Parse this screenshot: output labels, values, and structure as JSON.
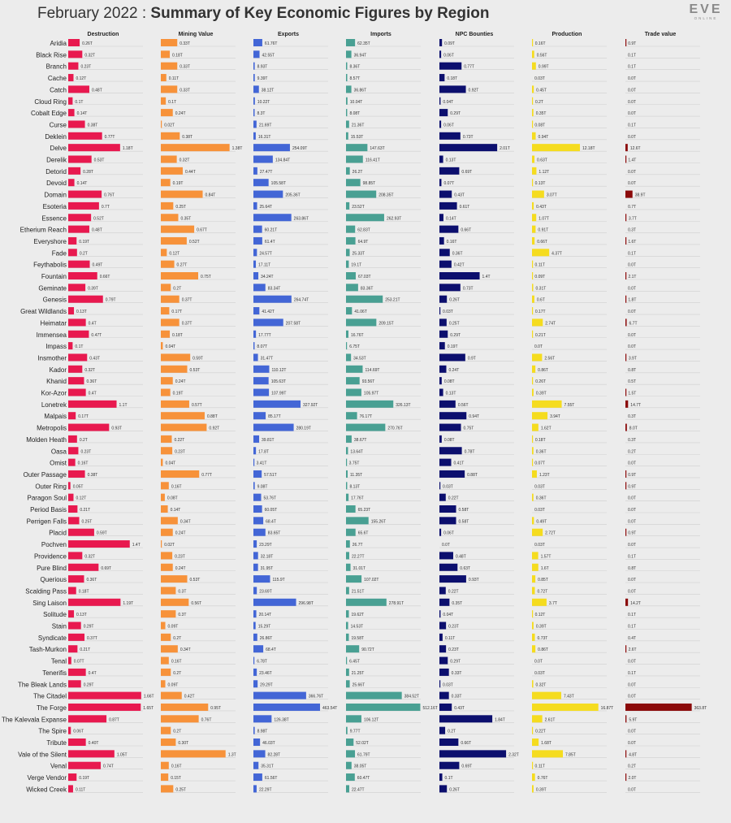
{
  "header": {
    "title_prefix": "February 2022 : ",
    "title_main": "Summary of Key Economic Figures by Region",
    "logo_text": "EVE",
    "logo_sub": "ONLINE"
  },
  "chart_data": {
    "type": "bar",
    "orientation": "horizontal",
    "categories": [
      "Aridia",
      "Black Rise",
      "Branch",
      "Cache",
      "Catch",
      "Cloud Ring",
      "Cobalt Edge",
      "Curse",
      "Deklein",
      "Delve",
      "Derelik",
      "Detorid",
      "Devoid",
      "Domain",
      "Esoteria",
      "Essence",
      "Etherium Reach",
      "Everyshore",
      "Fade",
      "Feythabolis",
      "Fountain",
      "Geminate",
      "Genesis",
      "Great Wildlands",
      "Heimatar",
      "Immensea",
      "Impass",
      "Insmother",
      "Kador",
      "Khanid",
      "Kor-Azor",
      "Lonetrek",
      "Malpais",
      "Metropolis",
      "Molden Heath",
      "Oasa",
      "Omist",
      "Outer Passage",
      "Outer Ring",
      "Paragon Soul",
      "Period Basis",
      "Perrigen Falls",
      "Placid",
      "Pochven",
      "Providence",
      "Pure Blind",
      "Querious",
      "Scalding Pass",
      "Sing Laison",
      "Solitude",
      "Stain",
      "Syndicate",
      "Tash-Murkon",
      "Tenal",
      "Tenerifis",
      "The Bleak Lands",
      "The Citadel",
      "The Forge",
      "The Kalevala Expanse",
      "The Spire",
      "Tribute",
      "Vale of the Silent",
      "Venal",
      "Verge Vendor",
      "Wicked Creek"
    ],
    "series": [
      {
        "name": "Destruction",
        "color": "#e8194f",
        "scale_max": 1.7,
        "values": [
          0.26,
          0.32,
          0.23,
          0.12,
          0.48,
          0.1,
          0.14,
          0.38,
          0.77,
          1.18,
          0.53,
          0.28,
          0.14,
          0.76,
          0.7,
          0.52,
          0.48,
          0.19,
          0.2,
          0.49,
          0.66,
          0.39,
          0.79,
          0.13,
          0.4,
          0.47,
          0.1,
          0.43,
          0.32,
          0.36,
          0.4,
          1.1,
          0.17,
          0.93,
          0.2,
          0.23,
          0.16,
          0.38,
          0.05,
          0.12,
          0.21,
          0.25,
          0.59,
          1.4,
          0.32,
          0.69,
          0.36,
          0.18,
          1.19,
          0.13,
          0.29,
          0.37,
          0.21,
          0.07,
          0.4,
          0.29,
          1.66,
          1.65,
          0.87,
          0.06,
          0.4,
          1.05,
          0.74,
          0.19,
          0.11
        ],
        "labels": [
          "0.26T",
          "0.32T",
          "0.23T",
          "0.12T",
          "0.48T",
          "0.1T",
          "0.14T",
          "0.38T",
          "0.77T",
          "1.18T",
          "0.53T",
          "0.28T",
          "0.14T",
          "0.76T",
          "0.7T",
          "0.52T",
          "0.48T",
          "0.19T",
          "0.2T",
          "0.49T",
          "0.66T",
          "0.39T",
          "0.79T",
          "0.13T",
          "0.4T",
          "0.47T",
          "0.1T",
          "0.43T",
          "0.32T",
          "0.36T",
          "0.4T",
          "1.1T",
          "0.17T",
          "0.93T",
          "0.2T",
          "0.23T",
          "0.16T",
          "0.38T",
          "0.05T",
          "0.12T",
          "0.21T",
          "0.25T",
          "0.59T",
          "1.4T",
          "0.32T",
          "0.69T",
          "0.36T",
          "0.18T",
          "1.19T",
          "0.13T",
          "0.29T",
          "0.37T",
          "0.21T",
          "0.07T",
          "0.4T",
          "0.29T",
          "1.66T",
          "1.65T",
          "0.87T",
          "0.06T",
          "0.40T",
          "1.05T",
          "0.74T",
          "0.19T",
          "0.11T"
        ]
      },
      {
        "name": "Mining Value",
        "color": "#f7923a",
        "scale_max": 1.5,
        "values": [
          0.33,
          0.18,
          0.33,
          0.11,
          0.33,
          0.1,
          0.24,
          0.02,
          0.38,
          1.38,
          0.32,
          0.44,
          0.19,
          0.84,
          0.25,
          0.35,
          0.67,
          0.52,
          0.12,
          0.27,
          0.75,
          0.2,
          0.37,
          0.17,
          0.37,
          0.18,
          0.04,
          0.59,
          0.53,
          0.24,
          0.19,
          0.57,
          0.88,
          0.92,
          0.22,
          0.23,
          0.04,
          0.77,
          0.16,
          0.08,
          0.14,
          0.34,
          0.24,
          0.02,
          0.23,
          0.24,
          0.53,
          0.3,
          0.56,
          0.3,
          0.09,
          0.2,
          0.34,
          0.16,
          0.2,
          0.09,
          0.42,
          0.95,
          0.76,
          0.2,
          0.3,
          1.3,
          0.16,
          0.15,
          0.25
        ],
        "labels": [
          "0.33T",
          "0.18T",
          "0.33T",
          "0.11T",
          "0.33T",
          "0.1T",
          "0.24T",
          "0.02T",
          "0.38T",
          "1.38T",
          "0.32T",
          "0.44T",
          "0.19T",
          "0.84T",
          "0.25T",
          "0.35T",
          "0.67T",
          "0.52T",
          "0.12T",
          "0.27T",
          "0.75T",
          "0.2T",
          "0.37T",
          "0.17T",
          "0.37T",
          "0.18T",
          "0.04T",
          "0.59T",
          "0.53T",
          "0.24T",
          "0.19T",
          "0.57T",
          "0.88T",
          "0.92T",
          "0.22T",
          "0.23T",
          "0.04T",
          "0.77T",
          "0.16T",
          "0.08T",
          "0.14T",
          "0.34T",
          "0.24T",
          "0.02T",
          "0.23T",
          "0.24T",
          "0.53T",
          "0.3T",
          "0.56T",
          "0.3T",
          "0.09T",
          "0.2T",
          "0.34T",
          "0.16T",
          "0.2T",
          "0.09T",
          "0.42T",
          "0.95T",
          "0.76T",
          "0.2T",
          "0.30T",
          "1.3T",
          "0.16T",
          "0.15T",
          "0.25T"
        ]
      },
      {
        "name": "Exports",
        "color": "#4366d6",
        "scale_max": 520,
        "values": [
          61.76,
          42.55,
          8.93,
          9.39,
          38.12,
          10.22,
          8.3,
          21.69,
          16.31,
          254.09,
          134.84,
          27.47,
          105.58,
          205.36,
          25.64,
          263.86,
          60.21,
          61.4,
          24.57,
          17.11,
          34.24,
          83.34,
          264.74,
          41.42,
          207.58,
          17.77,
          8.07,
          31.47,
          110.12,
          105.63,
          107.99,
          327.92,
          85.17,
          280.19,
          39.81,
          17.8,
          3.41,
          57.51,
          9.08,
          53.76,
          60.05,
          68.4,
          83.65,
          23.29,
          32.18,
          31.95,
          115.9,
          23.69,
          296.98,
          20.14,
          15.29,
          26.86,
          68.4,
          6.78,
          23.46,
          29.29,
          366.76,
          463.54,
          126.38,
          8.98,
          46.03,
          82.28,
          35.31,
          61.56,
          22.29
        ],
        "labels": [
          "61.76T",
          "42.55T",
          "8.93T",
          "9.39T",
          "38.12T",
          "10.22T",
          "8.3T",
          "21.69T",
          "16.31T",
          "254.09T",
          "134.84T",
          "27.47T",
          "105.58T",
          "205.36T",
          "25.64T",
          "263.86T",
          "60.21T",
          "61.4T",
          "24.57T",
          "17.11T",
          "34.24T",
          "83.34T",
          "264.74T",
          "41.42T",
          "207.58T",
          "17.77T",
          "8.07T",
          "31.47T",
          "110.12T",
          "105.63T",
          "107.99T",
          "327.92T",
          "85.17T",
          "280.19T",
          "39.81T",
          "17.8T",
          "3.41T",
          "57.51T",
          "9.08T",
          "53.76T",
          "60.05T",
          "68.4T",
          "83.65T",
          "23.29T",
          "32.18T",
          "31.95T",
          "115.9T",
          "23.69T",
          "296.98T",
          "20.14T",
          "15.29T",
          "26.86T",
          "68.4T",
          "6.78T",
          "23.46T",
          "29.29T",
          "366.76T",
          "463.54T",
          "126.38T",
          "8.98T",
          "46.03T",
          "82.28T",
          "35.31T",
          "61.56T",
          "22.29T"
        ]
      },
      {
        "name": "Imports",
        "color": "#49a093",
        "scale_max": 560,
        "values": [
          62.35,
          36.94,
          8.36,
          8.57,
          36.86,
          10.04,
          8.08,
          21.36,
          15.53,
          147.63,
          116.41,
          26.2,
          98.85,
          208.35,
          23.52,
          262.93,
          62.83,
          64.9,
          25.33,
          19.1,
          67.03,
          83.36,
          253.21,
          41.06,
          209.15,
          16.76,
          6.75,
          34.53,
          114.69,
          93.56,
          105.97,
          326.13,
          76.17,
          270.76,
          38.67,
          13.64,
          3.75,
          11.35,
          8.13,
          17.76,
          65.23,
          155.26,
          65.6,
          26.7,
          22.27,
          31.01,
          107.02,
          21.51,
          278.91,
          19.62,
          14.53,
          19.58,
          90.72,
          6.45,
          21.25,
          25.66,
          384.52,
          512.16,
          106.12,
          9.77,
          52.02,
          61.79,
          38.05,
          60.47,
          22.47
        ],
        "labels": [
          "62.35T",
          "36.94T",
          "8.36T",
          "8.57T",
          "36.86T",
          "10.04T",
          "8.08T",
          "21.36T",
          "15.53T",
          "147.63T",
          "116.41T",
          "26.2T",
          "98.85T",
          "208.35T",
          "23.52T",
          "262.93T",
          "62.83T",
          "64.9T",
          "25.33T",
          "19.1T",
          "67.03T",
          "83.36T",
          "253.21T",
          "41.06T",
          "209.15T",
          "16.76T",
          "6.75T",
          "34.53T",
          "114.69T",
          "93.56T",
          "105.97T",
          "326.13T",
          "76.17T",
          "270.76T",
          "38.67T",
          "13.64T",
          "3.75T",
          "11.35T",
          "8.13T",
          "17.76T",
          "65.23T",
          "155.26T",
          "65.6T",
          "26.7T",
          "22.27T",
          "31.01T",
          "107.02T",
          "21.51T",
          "278.91T",
          "19.62T",
          "14.53T",
          "19.58T",
          "90.72T",
          "6.45T",
          "21.25T",
          "25.66T",
          "384.52T",
          "512.16T",
          "106.12T",
          "9.77T",
          "52.02T",
          "61.79T",
          "38.05T",
          "60.47T",
          "22.47T"
        ]
      },
      {
        "name": "NPC Bounties",
        "color": "#0c0f6e",
        "scale_max": 2.6,
        "values": [
          0.09,
          0.06,
          0.77,
          0.18,
          0.92,
          0.04,
          0.29,
          0.06,
          0.73,
          2.01,
          0.13,
          0.69,
          0.07,
          0.43,
          0.61,
          0.14,
          0.66,
          0.16,
          0.36,
          0.42,
          1.4,
          0.73,
          0.26,
          0.03,
          0.25,
          0.29,
          0.19,
          0.9,
          0.24,
          0.08,
          0.13,
          0.56,
          0.94,
          0.75,
          0.08,
          0.78,
          0.41,
          0.88,
          0.03,
          0.22,
          0.58,
          0.58,
          0.06,
          0,
          0.48,
          0.63,
          0.93,
          0.22,
          0.35,
          0.04,
          0.23,
          0.11,
          0.23,
          0.29,
          0.33,
          0.03,
          0.33,
          0.43,
          1.84,
          0.2,
          0.66,
          2.32,
          0.69,
          0.1,
          0.26
        ],
        "labels": [
          "0.09T",
          "0.06T",
          "0.77T",
          "0.18T",
          "0.92T",
          "0.04T",
          "0.29T",
          "0.06T",
          "0.73T",
          "2.01T",
          "0.13T",
          "0.69T",
          "0.07T",
          "0.43T",
          "0.61T",
          "0.14T",
          "0.66T",
          "0.16T",
          "0.36T",
          "0.42T",
          "1.4T",
          "0.73T",
          "0.26T",
          "0.03T",
          "0.25T",
          "0.29T",
          "0.19T",
          "0.9T",
          "0.24T",
          "0.08T",
          "0.13T",
          "0.56T",
          "0.94T",
          "0.75T",
          "0.08T",
          "0.78T",
          "0.41T",
          "0.88T",
          "0.03T",
          "0.22T",
          "0.58T",
          "0.58T",
          "0.06T",
          "0.0T",
          "0.48T",
          "0.63T",
          "0.93T",
          "0.22T",
          "0.35T",
          "0.04T",
          "0.23T",
          "0.11T",
          "0.23T",
          "0.29T",
          "0.33T",
          "0.03T",
          "0.33T",
          "0.43T",
          "1.84T",
          "0.2T",
          "0.66T",
          "2.32T",
          "0.69T",
          "0.1T",
          "0.26T"
        ]
      },
      {
        "name": "Production",
        "color": "#f5dc1f",
        "scale_max": 19,
        "values": [
          0.16,
          0.56,
          0.99,
          0.03,
          0.45,
          0.2,
          0.35,
          0.08,
          0.94,
          12.18,
          0.63,
          1.12,
          0.13,
          3.07,
          0.43,
          1.07,
          0.91,
          0.66,
          4.37,
          0.11,
          0.09,
          0.31,
          0.6,
          0.17,
          2.74,
          0.21,
          0,
          2.56,
          0.86,
          0.26,
          0.39,
          7.55,
          3.94,
          1.62,
          0.18,
          0.36,
          0.07,
          1.23,
          0.03,
          0.36,
          0.03,
          0.49,
          2.72,
          0.03,
          1.57,
          1.6,
          0.85,
          0.72,
          3.7,
          0.12,
          0.39,
          0.73,
          0.86,
          0,
          0.03,
          0.32,
          7.43,
          16.87,
          2.61,
          0.22,
          1.68,
          7.85,
          0.11,
          0.76,
          0.39
        ],
        "labels": [
          "0.16T",
          "0.56T",
          "0.99T",
          "0.03T",
          "0.45T",
          "0.2T",
          "0.35T",
          "0.08T",
          "0.94T",
          "12.18T",
          "0.63T",
          "1.12T",
          "0.13T",
          "3.07T",
          "0.43T",
          "1.07T",
          "0.91T",
          "0.66T",
          "4.37T",
          "0.11T",
          "0.09T",
          "0.31T",
          "0.6T",
          "0.17T",
          "2.74T",
          "0.21T",
          "0.0T",
          "2.56T",
          "0.86T",
          "0.26T",
          "0.39T",
          "7.55T",
          "3.94T",
          "1.62T",
          "0.18T",
          "0.36T",
          "0.07T",
          "1.23T",
          "0.03T",
          "0.36T",
          "0.03T",
          "0.49T",
          "2.72T",
          "0.03T",
          "1.57T",
          "1.6T",
          "0.85T",
          "0.72T",
          "3.7T",
          "0.12T",
          "0.39T",
          "0.73T",
          "0.86T",
          "0.0T",
          "0.03T",
          "0.32T",
          "7.43T",
          "16.87T",
          "2.61T",
          "0.22T",
          "1.68T",
          "7.85T",
          "0.11T",
          "0.76T",
          "0.39T"
        ]
      },
      {
        "name": "Trade value",
        "color": "#8b0a0a",
        "scale_max": 410,
        "values": [
          0.9,
          0.1,
          0.1,
          0,
          0,
          0,
          0,
          0.1,
          0,
          12.6,
          1.4,
          0,
          0,
          38.9,
          0.7,
          3.7,
          0.3,
          1.6,
          0.1,
          0,
          2.1,
          0,
          1.8,
          0,
          6.7,
          0,
          0,
          3.9,
          0.8,
          0.5,
          1.5,
          14.7,
          0.3,
          8,
          0.3,
          0.2,
          0,
          0.9,
          0.9,
          0,
          0,
          0,
          0.9,
          0,
          0.1,
          0.8,
          0,
          0,
          14.2,
          0.1,
          0.1,
          0.4,
          2.6,
          0,
          0.1,
          0,
          0,
          363.8,
          5.9,
          0,
          0,
          4.8,
          0.2,
          2,
          0
        ],
        "labels": [
          "0.9T",
          "0.1T",
          "0.1T",
          "0.0T",
          "0.0T",
          "0.0T",
          "0.0T",
          "0.1T",
          "0.0T",
          "12.6T",
          "1.4T",
          "0.0T",
          "0.0T",
          "38.9T",
          "0.7T",
          "3.7T",
          "0.3T",
          "1.6T",
          "0.1T",
          "0.0T",
          "2.1T",
          "0.0T",
          "1.8T",
          "0.0T",
          "6.7T",
          "0.0T",
          "0.0T",
          "3.9T",
          "0.8T",
          "0.5T",
          "1.5T",
          "14.7T",
          "0.3T",
          "8.0T",
          "0.3T",
          "0.2T",
          "0.0T",
          "0.9T",
          "0.9T",
          "0.0T",
          "0.0T",
          "0.0T",
          "0.9T",
          "0.0T",
          "0.1T",
          "0.8T",
          "0.0T",
          "0.0T",
          "14.2T",
          "0.1T",
          "0.1T",
          "0.4T",
          "2.6T",
          "0.0T",
          "0.1T",
          "0.0T",
          "0.0T",
          "363.8T",
          "5.9T",
          "0.0T",
          "0.0T",
          "4.8T",
          "0.2T",
          "2.0T",
          "0.0T"
        ]
      }
    ]
  }
}
